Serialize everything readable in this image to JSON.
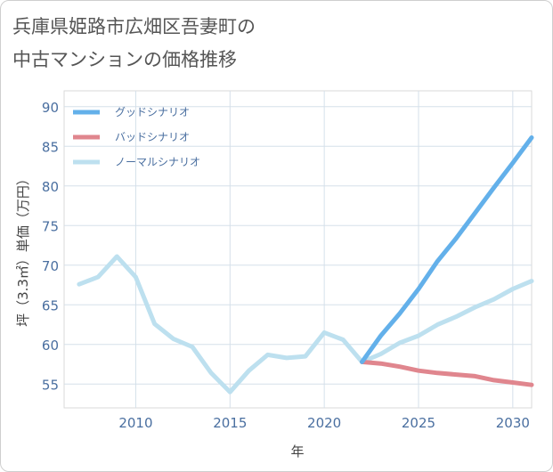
{
  "title_lines": [
    "兵庫県姫路市広畑区吾妻町の",
    "中古マンションの価格推移"
  ],
  "chart_data": {
    "type": "line",
    "xlabel": "年",
    "ylabel": "坪（3.3㎡）単価（万円）",
    "xlim": [
      2006.2,
      2031
    ],
    "ylim": [
      52,
      92
    ],
    "xticks": [
      2010,
      2015,
      2020,
      2025,
      2030
    ],
    "yticks": [
      55,
      60,
      65,
      70,
      75,
      80,
      85,
      90
    ],
    "grid": true,
    "legend_position": "top-left",
    "series": [
      {
        "name": "グッドシナリオ",
        "color": "#63b0ea",
        "x": [
          2022,
          2023,
          2024,
          2025,
          2026,
          2027,
          2028,
          2029,
          2030,
          2031
        ],
        "y": [
          57.8,
          61.1,
          63.9,
          67.0,
          70.5,
          73.4,
          76.6,
          79.8,
          82.9,
          86.1
        ]
      },
      {
        "name": "バッドシナリオ",
        "color": "#e0868e",
        "x": [
          2022,
          2023,
          2024,
          2025,
          2026,
          2027,
          2028,
          2029,
          2030,
          2031
        ],
        "y": [
          57.8,
          57.6,
          57.2,
          56.7,
          56.4,
          56.2,
          56.0,
          55.5,
          55.2,
          54.9
        ]
      },
      {
        "name": "ノーマルシナリオ",
        "color": "#bde0ef",
        "x": [
          2007,
          2008,
          2009,
          2010,
          2011,
          2012,
          2013,
          2014,
          2015,
          2016,
          2017,
          2018,
          2019,
          2020,
          2021,
          2022,
          2023,
          2024,
          2025,
          2026,
          2027,
          2028,
          2029,
          2030,
          2031
        ],
        "y": [
          67.6,
          68.5,
          71.1,
          68.5,
          62.6,
          60.7,
          59.7,
          56.4,
          54.0,
          56.7,
          58.7,
          58.3,
          58.5,
          61.5,
          60.6,
          57.8,
          58.8,
          60.2,
          61.1,
          62.5,
          63.5,
          64.7,
          65.7,
          67.0,
          68.0
        ]
      }
    ]
  }
}
